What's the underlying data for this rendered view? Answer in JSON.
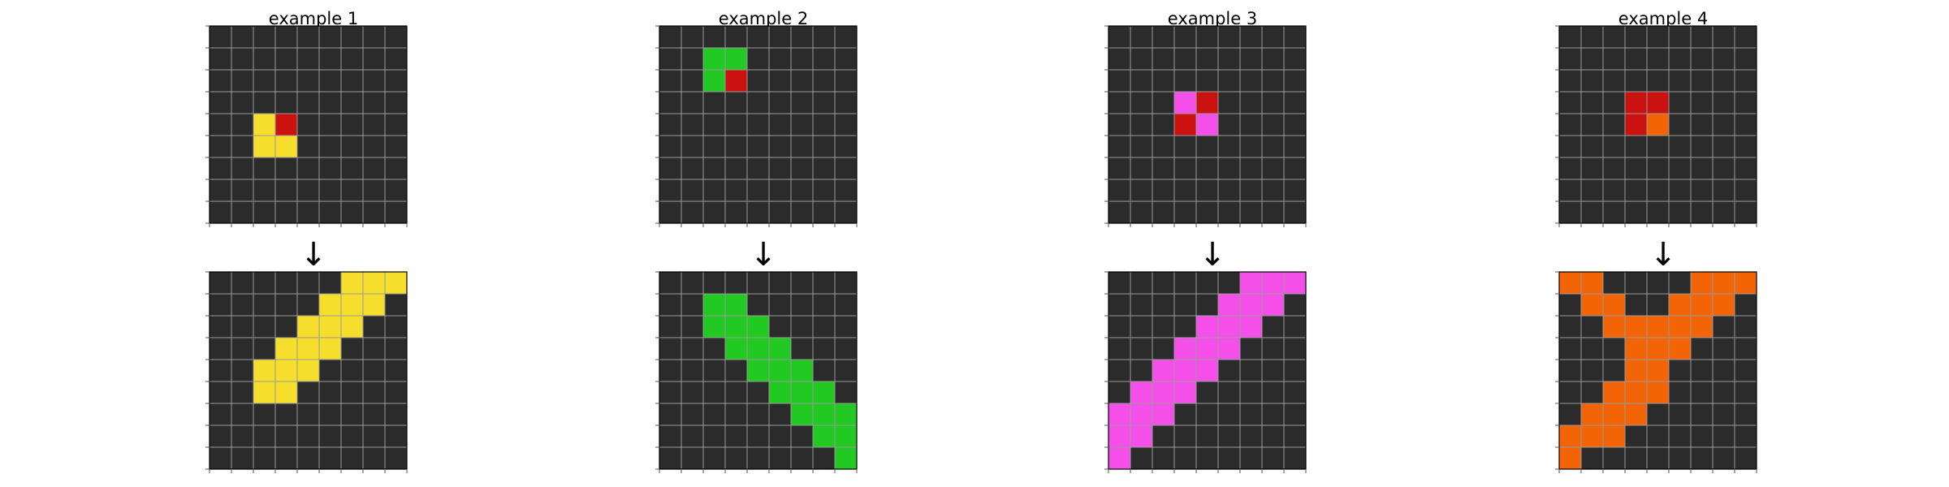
{
  "colors": {
    "0": "#2b2b2b",
    "2": "#cc1111",
    "3": "#22c922",
    "4": "#f5df2c",
    "6": "#f44fe9",
    "7": "#f26405",
    "gridline": "#9a9a9a",
    "tick": "#555555"
  },
  "arrow_symbol": "↓",
  "examples": [
    {
      "title": "example 1",
      "input": [
        [
          0,
          0,
          0,
          0,
          0,
          0,
          0,
          0,
          0
        ],
        [
          0,
          0,
          0,
          0,
          0,
          0,
          0,
          0,
          0
        ],
        [
          0,
          0,
          0,
          0,
          0,
          0,
          0,
          0,
          0
        ],
        [
          0,
          0,
          0,
          0,
          0,
          0,
          0,
          0,
          0
        ],
        [
          0,
          0,
          4,
          2,
          0,
          0,
          0,
          0,
          0
        ],
        [
          0,
          0,
          4,
          4,
          0,
          0,
          0,
          0,
          0
        ],
        [
          0,
          0,
          0,
          0,
          0,
          0,
          0,
          0,
          0
        ],
        [
          0,
          0,
          0,
          0,
          0,
          0,
          0,
          0,
          0
        ],
        [
          0,
          0,
          0,
          0,
          0,
          0,
          0,
          0,
          0
        ]
      ],
      "output": [
        [
          0,
          0,
          0,
          0,
          0,
          0,
          4,
          4,
          4
        ],
        [
          0,
          0,
          0,
          0,
          0,
          4,
          4,
          4,
          0
        ],
        [
          0,
          0,
          0,
          0,
          4,
          4,
          4,
          0,
          0
        ],
        [
          0,
          0,
          0,
          4,
          4,
          4,
          0,
          0,
          0
        ],
        [
          0,
          0,
          4,
          4,
          4,
          0,
          0,
          0,
          0
        ],
        [
          0,
          0,
          4,
          4,
          0,
          0,
          0,
          0,
          0
        ],
        [
          0,
          0,
          0,
          0,
          0,
          0,
          0,
          0,
          0
        ],
        [
          0,
          0,
          0,
          0,
          0,
          0,
          0,
          0,
          0
        ],
        [
          0,
          0,
          0,
          0,
          0,
          0,
          0,
          0,
          0
        ]
      ]
    },
    {
      "title": "example 2",
      "input": [
        [
          0,
          0,
          0,
          0,
          0,
          0,
          0,
          0,
          0
        ],
        [
          0,
          0,
          3,
          3,
          0,
          0,
          0,
          0,
          0
        ],
        [
          0,
          0,
          3,
          2,
          0,
          0,
          0,
          0,
          0
        ],
        [
          0,
          0,
          0,
          0,
          0,
          0,
          0,
          0,
          0
        ],
        [
          0,
          0,
          0,
          0,
          0,
          0,
          0,
          0,
          0
        ],
        [
          0,
          0,
          0,
          0,
          0,
          0,
          0,
          0,
          0
        ],
        [
          0,
          0,
          0,
          0,
          0,
          0,
          0,
          0,
          0
        ],
        [
          0,
          0,
          0,
          0,
          0,
          0,
          0,
          0,
          0
        ],
        [
          0,
          0,
          0,
          0,
          0,
          0,
          0,
          0,
          0
        ]
      ],
      "output": [
        [
          0,
          0,
          0,
          0,
          0,
          0,
          0,
          0,
          0
        ],
        [
          0,
          0,
          3,
          3,
          0,
          0,
          0,
          0,
          0
        ],
        [
          0,
          0,
          3,
          3,
          3,
          0,
          0,
          0,
          0
        ],
        [
          0,
          0,
          0,
          3,
          3,
          3,
          0,
          0,
          0
        ],
        [
          0,
          0,
          0,
          0,
          3,
          3,
          3,
          0,
          0
        ],
        [
          0,
          0,
          0,
          0,
          0,
          3,
          3,
          3,
          0
        ],
        [
          0,
          0,
          0,
          0,
          0,
          0,
          3,
          3,
          3
        ],
        [
          0,
          0,
          0,
          0,
          0,
          0,
          0,
          3,
          3
        ],
        [
          0,
          0,
          0,
          0,
          0,
          0,
          0,
          0,
          3
        ]
      ]
    },
    {
      "title": "example 3",
      "input": [
        [
          0,
          0,
          0,
          0,
          0,
          0,
          0,
          0,
          0
        ],
        [
          0,
          0,
          0,
          0,
          0,
          0,
          0,
          0,
          0
        ],
        [
          0,
          0,
          0,
          0,
          0,
          0,
          0,
          0,
          0
        ],
        [
          0,
          0,
          0,
          6,
          2,
          0,
          0,
          0,
          0
        ],
        [
          0,
          0,
          0,
          2,
          6,
          0,
          0,
          0,
          0
        ],
        [
          0,
          0,
          0,
          0,
          0,
          0,
          0,
          0,
          0
        ],
        [
          0,
          0,
          0,
          0,
          0,
          0,
          0,
          0,
          0
        ],
        [
          0,
          0,
          0,
          0,
          0,
          0,
          0,
          0,
          0
        ],
        [
          0,
          0,
          0,
          0,
          0,
          0,
          0,
          0,
          0
        ]
      ],
      "output": [
        [
          0,
          0,
          0,
          0,
          0,
          0,
          6,
          6,
          6
        ],
        [
          0,
          0,
          0,
          0,
          0,
          6,
          6,
          6,
          0
        ],
        [
          0,
          0,
          0,
          0,
          6,
          6,
          6,
          0,
          0
        ],
        [
          0,
          0,
          0,
          6,
          6,
          6,
          0,
          0,
          0
        ],
        [
          0,
          0,
          6,
          6,
          6,
          0,
          0,
          0,
          0
        ],
        [
          0,
          6,
          6,
          6,
          0,
          0,
          0,
          0,
          0
        ],
        [
          6,
          6,
          6,
          0,
          0,
          0,
          0,
          0,
          0
        ],
        [
          6,
          6,
          0,
          0,
          0,
          0,
          0,
          0,
          0
        ],
        [
          6,
          0,
          0,
          0,
          0,
          0,
          0,
          0,
          0
        ]
      ]
    },
    {
      "title": "example 4",
      "input": [
        [
          0,
          0,
          0,
          0,
          0,
          0,
          0,
          0,
          0
        ],
        [
          0,
          0,
          0,
          0,
          0,
          0,
          0,
          0,
          0
        ],
        [
          0,
          0,
          0,
          0,
          0,
          0,
          0,
          0,
          0
        ],
        [
          0,
          0,
          0,
          2,
          2,
          0,
          0,
          0,
          0
        ],
        [
          0,
          0,
          0,
          2,
          7,
          0,
          0,
          0,
          0
        ],
        [
          0,
          0,
          0,
          0,
          0,
          0,
          0,
          0,
          0
        ],
        [
          0,
          0,
          0,
          0,
          0,
          0,
          0,
          0,
          0
        ],
        [
          0,
          0,
          0,
          0,
          0,
          0,
          0,
          0,
          0
        ],
        [
          0,
          0,
          0,
          0,
          0,
          0,
          0,
          0,
          0
        ]
      ],
      "output": [
        [
          7,
          7,
          0,
          0,
          0,
          0,
          7,
          7,
          7
        ],
        [
          0,
          7,
          7,
          0,
          0,
          7,
          7,
          7,
          0
        ],
        [
          0,
          0,
          7,
          7,
          7,
          7,
          7,
          0,
          0
        ],
        [
          0,
          0,
          0,
          7,
          7,
          7,
          0,
          0,
          0
        ],
        [
          0,
          0,
          0,
          7,
          7,
          0,
          0,
          0,
          0
        ],
        [
          0,
          0,
          7,
          7,
          7,
          0,
          0,
          0,
          0
        ],
        [
          0,
          7,
          7,
          7,
          0,
          0,
          0,
          0,
          0
        ],
        [
          7,
          7,
          7,
          0,
          0,
          0,
          0,
          0,
          0
        ],
        [
          7,
          0,
          0,
          0,
          0,
          0,
          0,
          0,
          0
        ]
      ]
    }
  ]
}
